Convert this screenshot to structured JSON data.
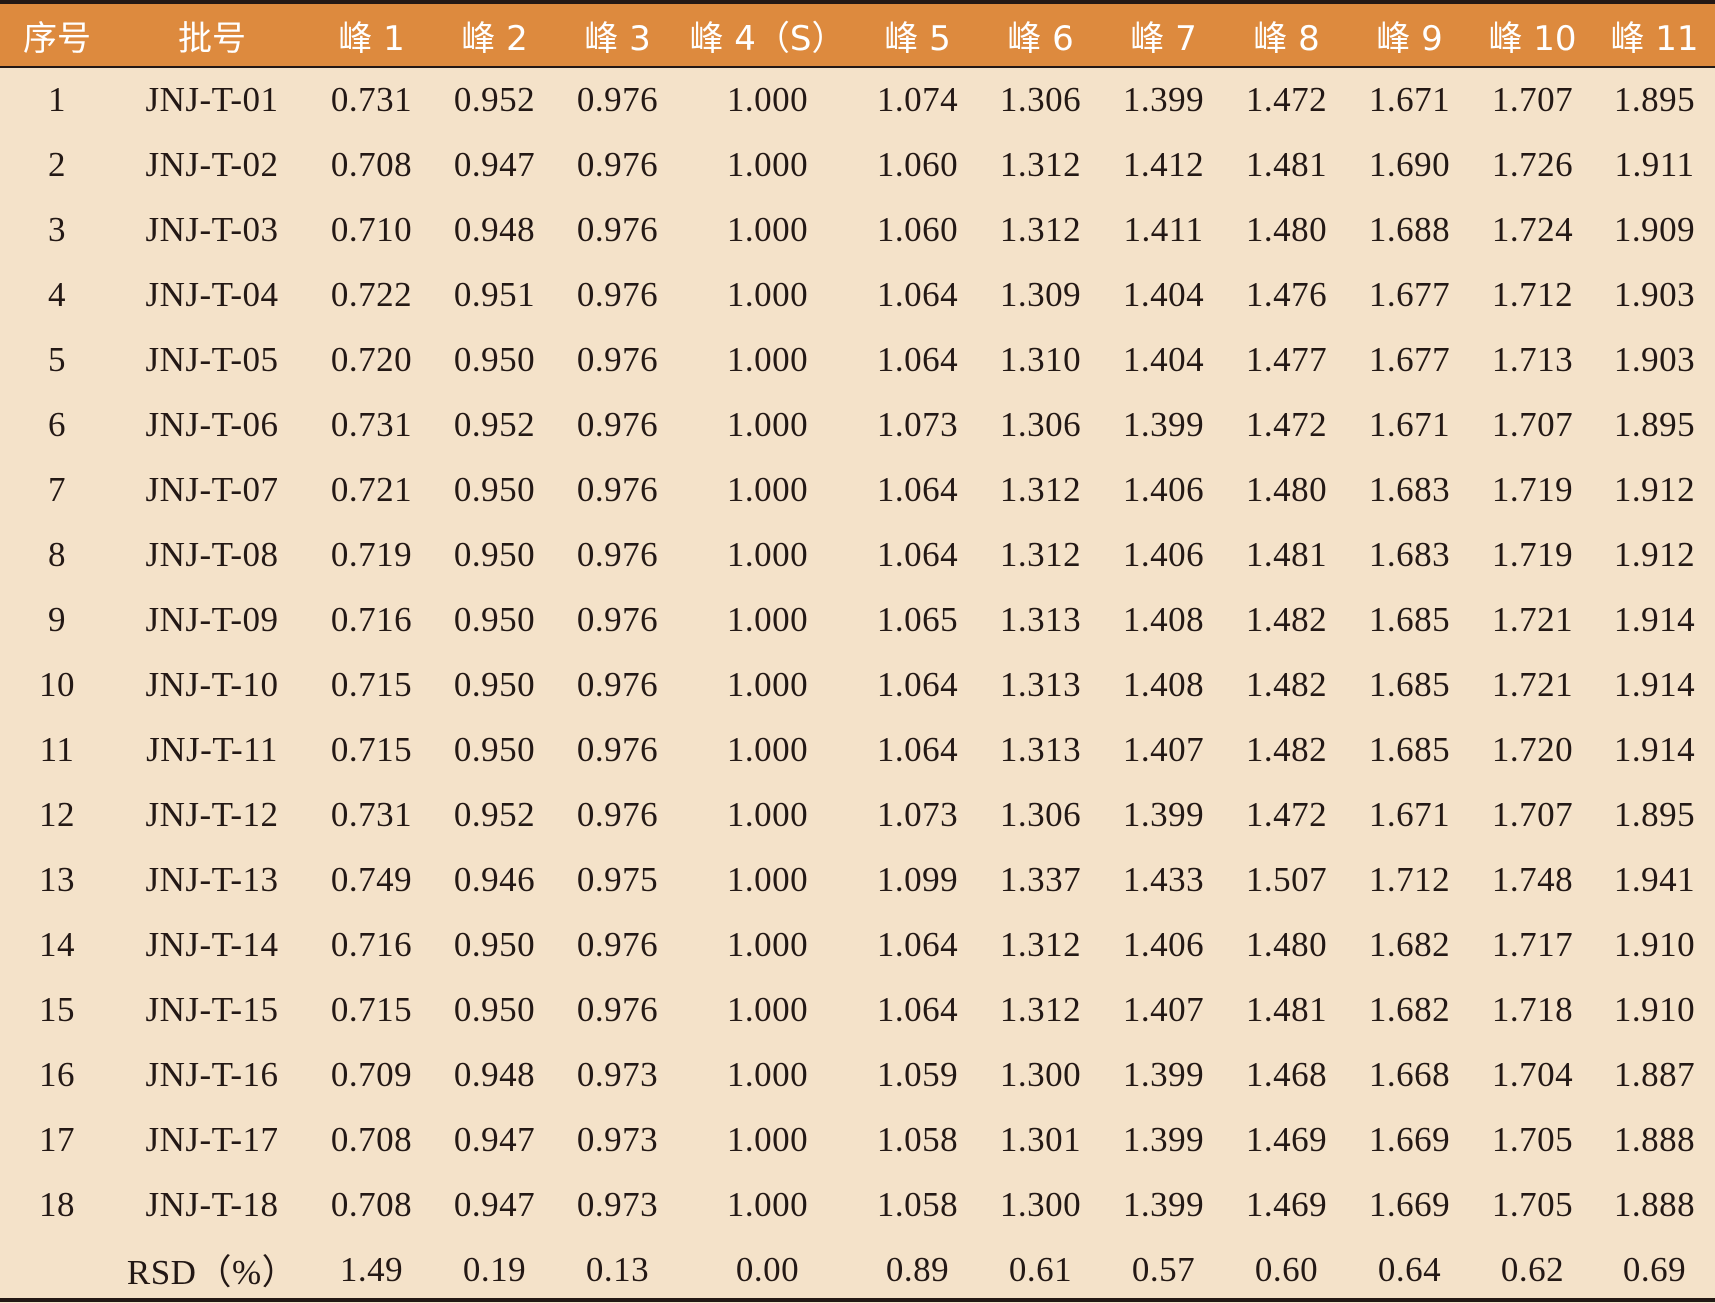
{
  "table": {
    "headers": [
      "序号",
      "批号",
      "峰 1",
      "峰 2",
      "峰 3",
      "峰 4（S）",
      "峰 5",
      "峰 6",
      "峰 7",
      "峰 8",
      "峰 9",
      "峰 10",
      "峰 11"
    ],
    "rows": [
      [
        "1",
        "JNJ-T-01",
        "0.731",
        "0.952",
        "0.976",
        "1.000",
        "1.074",
        "1.306",
        "1.399",
        "1.472",
        "1.671",
        "1.707",
        "1.895"
      ],
      [
        "2",
        "JNJ-T-02",
        "0.708",
        "0.947",
        "0.976",
        "1.000",
        "1.060",
        "1.312",
        "1.412",
        "1.481",
        "1.690",
        "1.726",
        "1.911"
      ],
      [
        "3",
        "JNJ-T-03",
        "0.710",
        "0.948",
        "0.976",
        "1.000",
        "1.060",
        "1.312",
        "1.411",
        "1.480",
        "1.688",
        "1.724",
        "1.909"
      ],
      [
        "4",
        "JNJ-T-04",
        "0.722",
        "0.951",
        "0.976",
        "1.000",
        "1.064",
        "1.309",
        "1.404",
        "1.476",
        "1.677",
        "1.712",
        "1.903"
      ],
      [
        "5",
        "JNJ-T-05",
        "0.720",
        "0.950",
        "0.976",
        "1.000",
        "1.064",
        "1.310",
        "1.404",
        "1.477",
        "1.677",
        "1.713",
        "1.903"
      ],
      [
        "6",
        "JNJ-T-06",
        "0.731",
        "0.952",
        "0.976",
        "1.000",
        "1.073",
        "1.306",
        "1.399",
        "1.472",
        "1.671",
        "1.707",
        "1.895"
      ],
      [
        "7",
        "JNJ-T-07",
        "0.721",
        "0.950",
        "0.976",
        "1.000",
        "1.064",
        "1.312",
        "1.406",
        "1.480",
        "1.683",
        "1.719",
        "1.912"
      ],
      [
        "8",
        "JNJ-T-08",
        "0.719",
        "0.950",
        "0.976",
        "1.000",
        "1.064",
        "1.312",
        "1.406",
        "1.481",
        "1.683",
        "1.719",
        "1.912"
      ],
      [
        "9",
        "JNJ-T-09",
        "0.716",
        "0.950",
        "0.976",
        "1.000",
        "1.065",
        "1.313",
        "1.408",
        "1.482",
        "1.685",
        "1.721",
        "1.914"
      ],
      [
        "10",
        "JNJ-T-10",
        "0.715",
        "0.950",
        "0.976",
        "1.000",
        "1.064",
        "1.313",
        "1.408",
        "1.482",
        "1.685",
        "1.721",
        "1.914"
      ],
      [
        "11",
        "JNJ-T-11",
        "0.715",
        "0.950",
        "0.976",
        "1.000",
        "1.064",
        "1.313",
        "1.407",
        "1.482",
        "1.685",
        "1.720",
        "1.914"
      ],
      [
        "12",
        "JNJ-T-12",
        "0.731",
        "0.952",
        "0.976",
        "1.000",
        "1.073",
        "1.306",
        "1.399",
        "1.472",
        "1.671",
        "1.707",
        "1.895"
      ],
      [
        "13",
        "JNJ-T-13",
        "0.749",
        "0.946",
        "0.975",
        "1.000",
        "1.099",
        "1.337",
        "1.433",
        "1.507",
        "1.712",
        "1.748",
        "1.941"
      ],
      [
        "14",
        "JNJ-T-14",
        "0.716",
        "0.950",
        "0.976",
        "1.000",
        "1.064",
        "1.312",
        "1.406",
        "1.480",
        "1.682",
        "1.717",
        "1.910"
      ],
      [
        "15",
        "JNJ-T-15",
        "0.715",
        "0.950",
        "0.976",
        "1.000",
        "1.064",
        "1.312",
        "1.407",
        "1.481",
        "1.682",
        "1.718",
        "1.910"
      ],
      [
        "16",
        "JNJ-T-16",
        "0.709",
        "0.948",
        "0.973",
        "1.000",
        "1.059",
        "1.300",
        "1.399",
        "1.468",
        "1.668",
        "1.704",
        "1.887"
      ],
      [
        "17",
        "JNJ-T-17",
        "0.708",
        "0.947",
        "0.973",
        "1.000",
        "1.058",
        "1.301",
        "1.399",
        "1.469",
        "1.669",
        "1.705",
        "1.888"
      ],
      [
        "18",
        "JNJ-T-18",
        "0.708",
        "0.947",
        "0.973",
        "1.000",
        "1.058",
        "1.300",
        "1.399",
        "1.469",
        "1.669",
        "1.705",
        "1.888"
      ],
      [
        "",
        "RSD（%）",
        "1.49",
        "0.19",
        "0.13",
        "0.00",
        "0.89",
        "0.61",
        "0.57",
        "0.60",
        "0.64",
        "0.62",
        "0.69"
      ]
    ]
  },
  "colors": {
    "header_bg": "#dd8a3e",
    "body_bg": "#f4e2c9",
    "rule": "#231815"
  }
}
